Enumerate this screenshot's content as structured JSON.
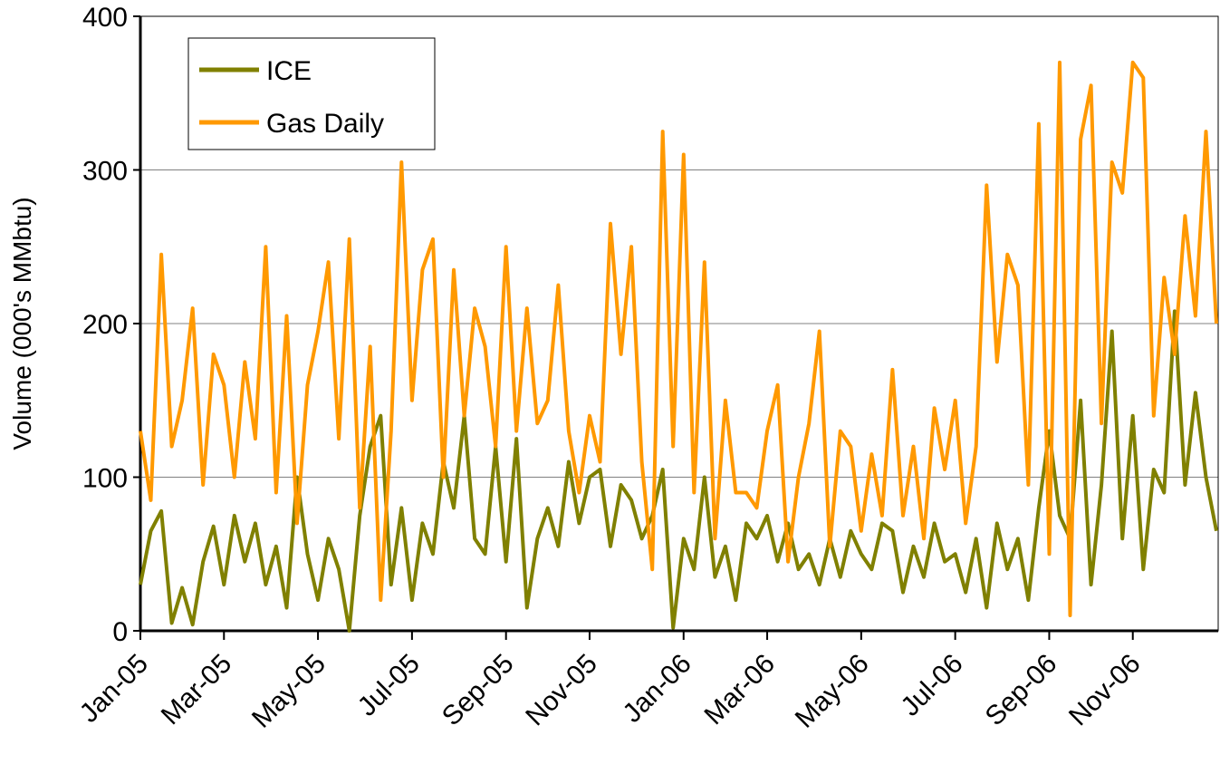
{
  "chart_data": {
    "type": "line",
    "y_label": "Volume (000's MMbtu)",
    "categories": [
      "Jan-05",
      null,
      null,
      null,
      null,
      null,
      null,
      null,
      "Mar-05",
      null,
      null,
      null,
      null,
      null,
      null,
      null,
      null,
      "May-05",
      null,
      null,
      null,
      null,
      null,
      null,
      null,
      null,
      "Jul-05",
      null,
      null,
      null,
      null,
      null,
      null,
      null,
      null,
      "Sep-05",
      null,
      null,
      null,
      null,
      null,
      null,
      null,
      "Nov-05",
      null,
      null,
      null,
      null,
      null,
      null,
      null,
      null,
      "Jan-06",
      null,
      null,
      null,
      null,
      null,
      null,
      null,
      "Mar-06",
      null,
      null,
      null,
      null,
      null,
      null,
      null,
      null,
      "May-06",
      null,
      null,
      null,
      null,
      null,
      null,
      null,
      null,
      "Jul-06",
      null,
      null,
      null,
      null,
      null,
      null,
      null,
      null,
      "Sep-06",
      null,
      null,
      null,
      null,
      null,
      null,
      null,
      "Nov-06",
      null,
      null,
      null,
      null,
      null,
      null,
      null,
      null
    ],
    "series": [
      {
        "name": "ICE",
        "color": "#808000",
        "values": [
          30,
          65,
          78,
          5,
          28,
          4,
          45,
          68,
          30,
          75,
          45,
          70,
          30,
          55,
          15,
          100,
          50,
          20,
          60,
          40,
          0,
          75,
          120,
          140,
          30,
          80,
          20,
          70,
          50,
          110,
          80,
          140,
          60,
          50,
          120,
          45,
          125,
          15,
          60,
          80,
          55,
          110,
          70,
          100,
          105,
          55,
          95,
          85,
          60,
          75,
          105,
          2,
          60,
          40,
          100,
          35,
          55,
          20,
          70,
          60,
          75,
          45,
          70,
          40,
          50,
          30,
          60,
          35,
          65,
          50,
          40,
          70,
          65,
          25,
          55,
          35,
          70,
          45,
          50,
          25,
          60,
          15,
          70,
          40,
          60,
          20,
          80,
          130,
          75,
          60,
          150,
          30,
          95,
          195,
          60,
          140,
          40,
          105,
          90,
          208,
          95,
          155,
          100,
          65
        ]
      },
      {
        "name": "Gas Daily",
        "color": "#ff9900",
        "values": [
          130,
          85,
          245,
          120,
          150,
          210,
          95,
          180,
          160,
          100,
          175,
          125,
          250,
          90,
          205,
          70,
          160,
          195,
          240,
          125,
          255,
          80,
          185,
          20,
          130,
          305,
          150,
          235,
          255,
          100,
          235,
          140,
          210,
          185,
          120,
          250,
          130,
          210,
          135,
          150,
          225,
          130,
          90,
          140,
          110,
          265,
          180,
          250,
          110,
          40,
          325,
          120,
          310,
          90,
          240,
          60,
          150,
          90,
          90,
          80,
          130,
          160,
          45,
          100,
          135,
          195,
          55,
          130,
          120,
          65,
          115,
          75,
          170,
          75,
          120,
          60,
          145,
          105,
          150,
          70,
          120,
          290,
          175,
          245,
          225,
          95,
          330,
          50,
          370,
          10,
          320,
          355,
          135,
          305,
          285,
          370,
          360,
          140,
          230,
          180,
          270,
          205,
          325,
          200
        ]
      }
    ],
    "ylim": [
      0,
      400
    ],
    "yticks": [
      0,
      100,
      200,
      300,
      400
    ],
    "grid": true,
    "legend": "top-left"
  }
}
